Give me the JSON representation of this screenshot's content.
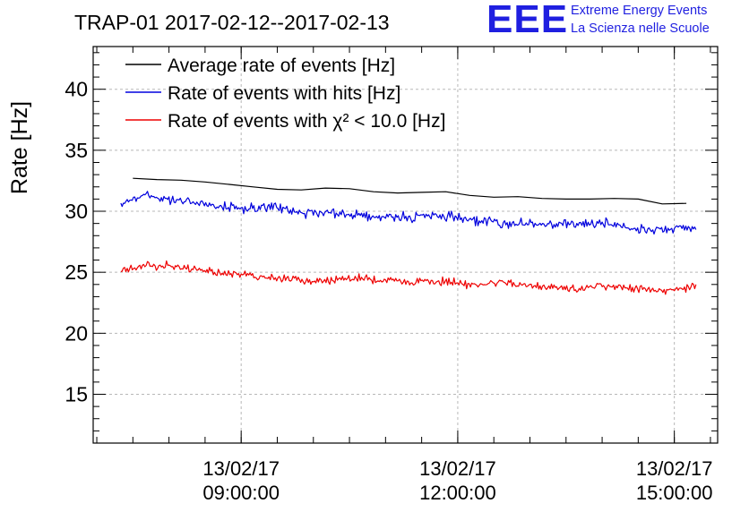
{
  "logo": {
    "letters": "EEE",
    "line1": "Extreme Energy Events",
    "line2": "La Scienza nelle Scuole",
    "color": "#1f1fe0"
  },
  "chart_data": {
    "type": "line",
    "title": "TRAP-01 2017-02-12--2017-02-13",
    "xlabel": "",
    "ylabel": "Rate [Hz]",
    "ylim": [
      11,
      43.5
    ],
    "xlim": [
      "2017-02-13 06:57:00",
      "2017-02-13 15:36:00"
    ],
    "grid": true,
    "legend_position": "top-left",
    "yticks": [
      15,
      20,
      25,
      30,
      35,
      40
    ],
    "xticks": [
      {
        "line1": "13/02/17",
        "line2": "09:00:00",
        "x": "2017-02-13 09:00:00"
      },
      {
        "line1": "13/02/17",
        "line2": "12:00:00",
        "x": "2017-02-13 12:00:00"
      },
      {
        "line1": "13/02/17",
        "line2": "15:00:00",
        "x": "2017-02-13 15:00:00"
      }
    ],
    "series": [
      {
        "name": "Average rate of events [Hz]",
        "color": "#000000",
        "points": [
          [
            "2017-02-13 07:30:00",
            32.7
          ],
          [
            "2017-02-13 07:50:00",
            32.6
          ],
          [
            "2017-02-13 08:10:00",
            32.55
          ],
          [
            "2017-02-13 08:30:00",
            32.4
          ],
          [
            "2017-02-13 08:50:00",
            32.2
          ],
          [
            "2017-02-13 09:10:00",
            32.0
          ],
          [
            "2017-02-13 09:30:00",
            31.8
          ],
          [
            "2017-02-13 09:50:00",
            31.75
          ],
          [
            "2017-02-13 10:10:00",
            31.9
          ],
          [
            "2017-02-13 10:30:00",
            31.85
          ],
          [
            "2017-02-13 10:50:00",
            31.6
          ],
          [
            "2017-02-13 11:10:00",
            31.5
          ],
          [
            "2017-02-13 11:30:00",
            31.55
          ],
          [
            "2017-02-13 11:50:00",
            31.6
          ],
          [
            "2017-02-13 12:10:00",
            31.3
          ],
          [
            "2017-02-13 12:30:00",
            31.15
          ],
          [
            "2017-02-13 12:50:00",
            31.2
          ],
          [
            "2017-02-13 13:10:00",
            31.05
          ],
          [
            "2017-02-13 13:30:00",
            31.0
          ],
          [
            "2017-02-13 13:50:00",
            31.0
          ],
          [
            "2017-02-13 14:10:00",
            31.05
          ],
          [
            "2017-02-13 14:30:00",
            31.0
          ],
          [
            "2017-02-13 14:50:00",
            30.6
          ],
          [
            "2017-02-13 15:10:00",
            30.65
          ]
        ]
      },
      {
        "name": "Rate of events with hits [Hz]",
        "color": "#0000dd",
        "points": [
          [
            "2017-02-13 07:20:00",
            30.7
          ],
          [
            "2017-02-13 07:40:00",
            31.3
          ],
          [
            "2017-02-13 08:00:00",
            31.0
          ],
          [
            "2017-02-13 08:20:00",
            30.7
          ],
          [
            "2017-02-13 08:40:00",
            30.5
          ],
          [
            "2017-02-13 09:00:00",
            30.2
          ],
          [
            "2017-02-13 09:20:00",
            30.4
          ],
          [
            "2017-02-13 09:40:00",
            30.0
          ],
          [
            "2017-02-13 10:00:00",
            29.9
          ],
          [
            "2017-02-13 10:20:00",
            29.8
          ],
          [
            "2017-02-13 10:40:00",
            29.7
          ],
          [
            "2017-02-13 11:00:00",
            29.6
          ],
          [
            "2017-02-13 11:20:00",
            29.5
          ],
          [
            "2017-02-13 11:40:00",
            29.6
          ],
          [
            "2017-02-13 12:00:00",
            29.4
          ],
          [
            "2017-02-13 12:20:00",
            29.2
          ],
          [
            "2017-02-13 12:40:00",
            29.0
          ],
          [
            "2017-02-13 13:00:00",
            29.0
          ],
          [
            "2017-02-13 13:20:00",
            28.9
          ],
          [
            "2017-02-13 13:40:00",
            29.0
          ],
          [
            "2017-02-13 14:00:00",
            29.0
          ],
          [
            "2017-02-13 14:20:00",
            28.7
          ],
          [
            "2017-02-13 14:40:00",
            28.3
          ],
          [
            "2017-02-13 15:00:00",
            28.7
          ],
          [
            "2017-02-13 15:18:00",
            28.5
          ]
        ]
      },
      {
        "name": "Rate of events with χ² < 10.0 [Hz]",
        "color": "#ee0000",
        "points": [
          [
            "2017-02-13 07:20:00",
            25.2
          ],
          [
            "2017-02-13 07:40:00",
            25.6
          ],
          [
            "2017-02-13 08:00:00",
            25.5
          ],
          [
            "2017-02-13 08:20:00",
            25.2
          ],
          [
            "2017-02-13 08:40:00",
            25.0
          ],
          [
            "2017-02-13 09:00:00",
            24.8
          ],
          [
            "2017-02-13 09:20:00",
            24.6
          ],
          [
            "2017-02-13 09:40:00",
            24.4
          ],
          [
            "2017-02-13 10:00:00",
            24.3
          ],
          [
            "2017-02-13 10:20:00",
            24.4
          ],
          [
            "2017-02-13 10:40:00",
            24.5
          ],
          [
            "2017-02-13 11:00:00",
            24.3
          ],
          [
            "2017-02-13 11:20:00",
            24.2
          ],
          [
            "2017-02-13 11:40:00",
            24.3
          ],
          [
            "2017-02-13 12:00:00",
            24.1
          ],
          [
            "2017-02-13 12:20:00",
            24.0
          ],
          [
            "2017-02-13 12:40:00",
            24.2
          ],
          [
            "2017-02-13 13:00:00",
            23.9
          ],
          [
            "2017-02-13 13:20:00",
            23.8
          ],
          [
            "2017-02-13 13:40:00",
            23.7
          ],
          [
            "2017-02-13 14:00:00",
            23.9
          ],
          [
            "2017-02-13 14:20:00",
            23.8
          ],
          [
            "2017-02-13 14:40:00",
            23.6
          ],
          [
            "2017-02-13 15:00:00",
            23.5
          ],
          [
            "2017-02-13 15:18:00",
            24.0
          ]
        ]
      }
    ]
  }
}
